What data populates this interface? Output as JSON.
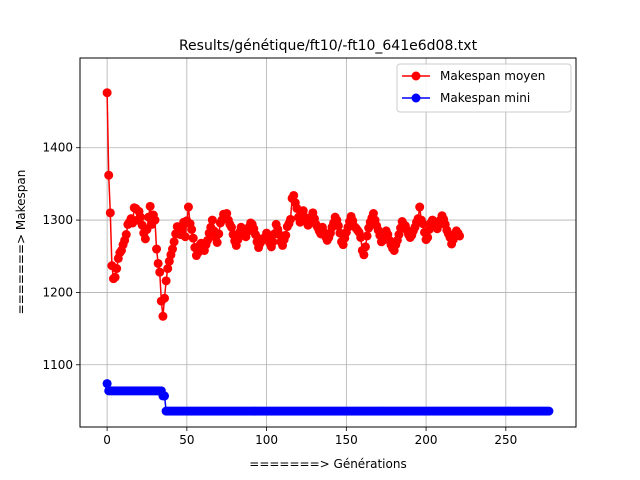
{
  "chart_data": {
    "type": "line",
    "title": "Results/génétique/ft10/-ft10_641e6d08.txt",
    "xlabel": "=======> Générations",
    "ylabel": "=======> Makespan",
    "xlim": [
      -17,
      294
    ],
    "ylim": [
      1014,
      1524
    ],
    "xticks": [
      0,
      50,
      100,
      150,
      200,
      250
    ],
    "yticks": [
      1100,
      1200,
      1300,
      1400
    ],
    "grid": true,
    "legend_position": "upper right",
    "series": [
      {
        "name": "Makespan moyen",
        "color": "#ff0000",
        "values": [
          1476,
          1362,
          1310,
          1237,
          1219,
          1221,
          1233,
          1247,
          1255,
          1258,
          1266,
          1272,
          1280,
          1294,
          1297,
          1302,
          1296,
          1317,
          1316,
          1300,
          1312,
          1304,
          1293,
          1282,
          1274,
          1287,
          1304,
          1319,
          1294,
          1307,
          1300,
          1260,
          1240,
          1228,
          1188,
          1167,
          1192,
          1216,
          1233,
          1243,
          1252,
          1260,
          1270,
          1281,
          1291,
          1285,
          1280,
          1290,
          1297,
          1277,
          1299,
          1318,
          1295,
          1287,
          1275,
          1262,
          1251,
          1255,
          1265,
          1268,
          1262,
          1258,
          1266,
          1272,
          1282,
          1290,
          1300,
          1285,
          1276,
          1269,
          1281,
          1296,
          1300,
          1308,
          1306,
          1309,
          1300,
          1294,
          1290,
          1280,
          1271,
          1265,
          1273,
          1283,
          1290,
          1285,
          1280,
          1277,
          1284,
          1290,
          1296,
          1294,
          1288,
          1280,
          1270,
          1262,
          1268,
          1274,
          1273,
          1276,
          1282,
          1275,
          1268,
          1263,
          1270,
          1281,
          1294,
          1287,
          1280,
          1270,
          1265,
          1273,
          1279,
          1291,
          1295,
          1301,
          1330,
          1334,
          1324,
          1316,
          1304,
          1297,
          1309,
          1313,
          1304,
          1298,
          1293,
          1298,
          1304,
          1310,
          1302,
          1294,
          1290,
          1285,
          1281,
          1290,
          1283,
          1277,
          1272,
          1276,
          1282,
          1290,
          1296,
          1304,
          1300,
          1292,
          1282,
          1270,
          1266,
          1275,
          1283,
          1290,
          1298,
          1305,
          1299,
          1291,
          1289,
          1286,
          1283,
          1276,
          1258,
          1252,
          1263,
          1278,
          1289,
          1297,
          1303,
          1309,
          1300,
          1292,
          1286,
          1279,
          1270,
          1272,
          1280,
          1285,
          1280,
          1272,
          1266,
          1261,
          1258,
          1266,
          1272,
          1280,
          1289,
          1298,
          1294,
          1292,
          1286,
          1280,
          1276,
          1279,
          1285,
          1290,
          1297,
          1302,
          1318,
          1300,
          1295,
          1283,
          1273,
          1276,
          1287,
          1296,
          1300,
          1298,
          1293,
          1288,
          1294,
          1300,
          1306,
          1301,
          1294,
          1286,
          1281,
          1276,
          1267,
          1273,
          1279,
          1285,
          1282,
          1278
        ]
      },
      {
        "name": "Makespan mini",
        "color": "#0000ff",
        "segments": [
          {
            "from": 0,
            "to": 0,
            "value": 1074
          },
          {
            "from": 1,
            "to": 34,
            "value": 1064
          },
          {
            "from": 35,
            "to": 36,
            "value": 1057
          },
          {
            "from": 37,
            "to": 277,
            "value": 1036
          }
        ]
      }
    ]
  }
}
